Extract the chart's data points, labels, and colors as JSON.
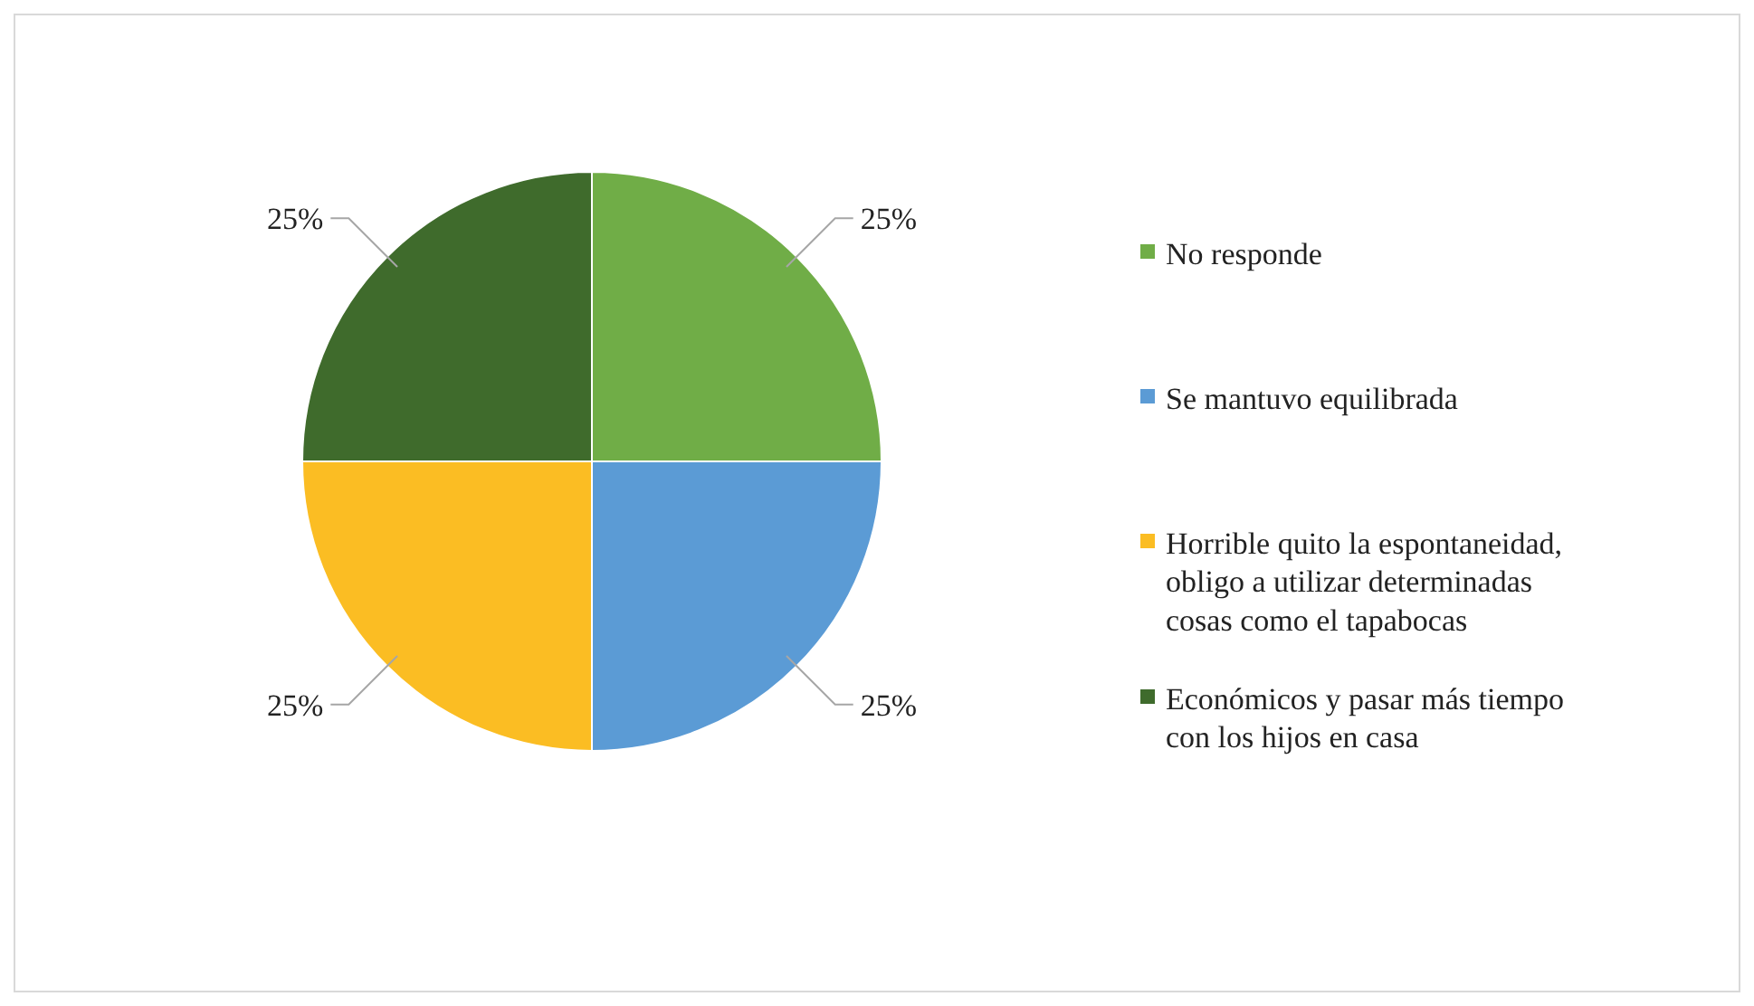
{
  "chart_data": {
    "type": "pie",
    "categories": [
      "No responde",
      "Se mantuvo equilibrada",
      "Horrible quito la espontaneidad, obligo a utilizar determinadas cosas como el tapabocas",
      "Económicos y pasar más tiempo con los hijos en casa"
    ],
    "values": [
      25,
      25,
      25,
      25
    ],
    "colors": [
      "#70ad47",
      "#5b9bd5",
      "#fbbd23",
      "#3f6b2c"
    ],
    "value_labels": [
      "25%",
      "25%",
      "25%",
      "25%"
    ],
    "legend": "right"
  }
}
